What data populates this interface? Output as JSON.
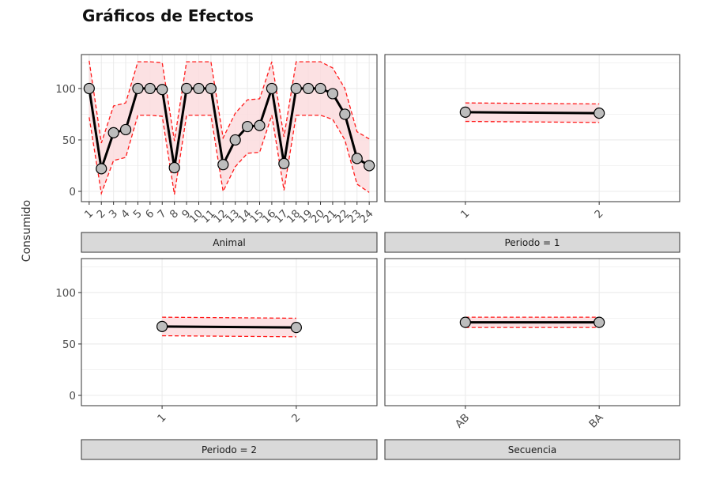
{
  "chart_data": {
    "type": "line",
    "title": "Gráficos de Efectos",
    "ylabel": "Consumido",
    "ylim": [
      -10,
      133
    ],
    "yticks": [
      0,
      50,
      100
    ],
    "grid": true,
    "colors": {
      "line": "#000000",
      "point_fill": "#bdbdbd",
      "band_fill": "#fcdcde",
      "band_line": "#ff1a1a",
      "strip_fill": "#d9d9d9",
      "panel_border": "#333333",
      "grid": "#ebebeb"
    },
    "panels": [
      {
        "strip": "Animal",
        "categories": [
          "1",
          "2",
          "3",
          "4",
          "5",
          "6",
          "7",
          "8",
          "9",
          "10",
          "11",
          "12",
          "13",
          "14",
          "15",
          "16",
          "17",
          "18",
          "19",
          "20",
          "21",
          "22",
          "23",
          "24"
        ],
        "values": [
          100,
          22,
          57,
          60,
          100,
          100,
          99,
          23,
          100,
          100,
          100,
          26,
          50,
          63,
          64,
          100,
          27,
          100,
          100,
          100,
          95,
          75,
          32,
          25
        ],
        "lower": [
          72,
          -2,
          30,
          33,
          74,
          74,
          73,
          -3,
          74,
          74,
          74,
          0,
          24,
          37,
          38,
          74,
          1,
          74,
          74,
          74,
          70,
          50,
          7,
          -1
        ],
        "upper": [
          127,
          47,
          83,
          86,
          126,
          126,
          125,
          49,
          126,
          126,
          126,
          52,
          76,
          89,
          90,
          126,
          53,
          126,
          126,
          126,
          120,
          100,
          58,
          51
        ]
      },
      {
        "strip": "Periodo = 1",
        "categories": [
          "1",
          "2"
        ],
        "values": [
          77,
          76
        ],
        "lower": [
          68,
          67
        ],
        "upper": [
          86,
          85
        ]
      },
      {
        "strip": "Periodo = 2",
        "categories": [
          "1",
          "2"
        ],
        "values": [
          67,
          66
        ],
        "lower": [
          58,
          57
        ],
        "upper": [
          76,
          75
        ]
      },
      {
        "strip": "Secuencia",
        "categories": [
          "AB",
          "BA"
        ],
        "values": [
          71,
          71
        ],
        "lower": [
          66,
          66
        ],
        "upper": [
          76,
          76
        ]
      }
    ]
  }
}
